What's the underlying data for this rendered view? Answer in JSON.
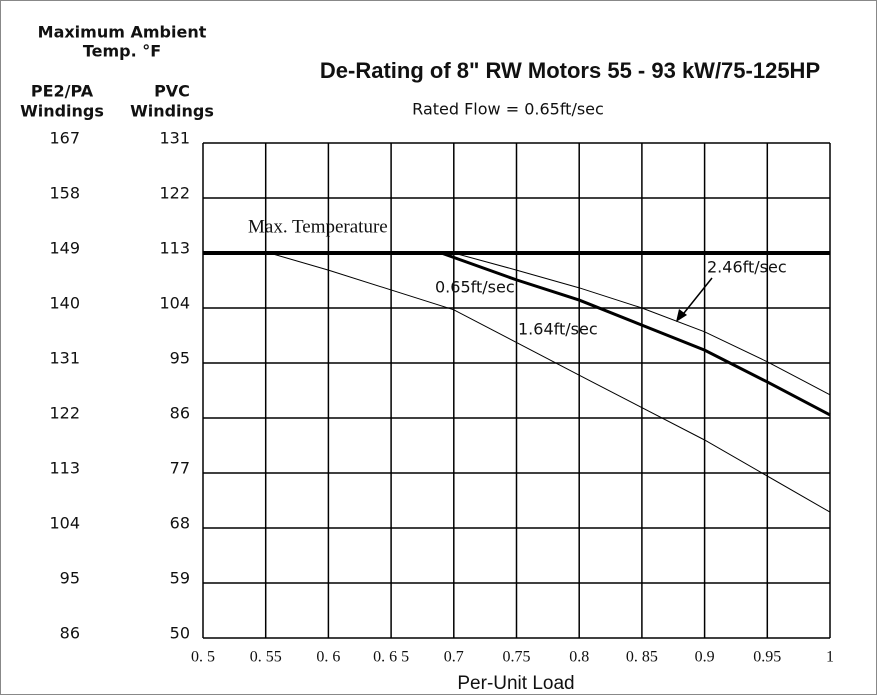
{
  "chart_data": {
    "type": "line",
    "title": "De-Rating of 8\" RW Motors 55 - 93 kW/75-125HP",
    "subtitle": "Rated Flow = 0.65ft/sec",
    "y_header": [
      "Maximum Ambient",
      "Temp. °F"
    ],
    "y2_axis_label": [
      "PE2/PA",
      "Windings"
    ],
    "y_axis_label": [
      "PVC",
      "Windings"
    ],
    "x_axis_label": "Per-Unit Load",
    "xlim": [
      0.5,
      1
    ],
    "xticks": [
      {
        "value": 0.5,
        "label": "0. 5"
      },
      {
        "value": 0.55,
        "label": "0. 55"
      },
      {
        "value": 0.6,
        "label": "0. 6"
      },
      {
        "value": 0.65,
        "label": "0. 6 5"
      },
      0.7,
      0.75,
      0.8,
      {
        "value": 0.85,
        "label": "0. 85"
      },
      0.9,
      0.95,
      1
    ],
    "ylim": [
      50,
      131
    ],
    "yticks": [
      50,
      59,
      68,
      77,
      86,
      95,
      104,
      113,
      122,
      131
    ],
    "y2lim": [
      86,
      167
    ],
    "y2ticks": [
      86,
      95,
      104,
      113,
      122,
      131,
      140,
      149,
      158,
      167
    ],
    "grid": true,
    "series": [
      {
        "name": "Max. Temperature",
        "color": "#000000",
        "width": 4,
        "x": [
          0.5,
          1
        ],
        "values": [
          113,
          113
        ]
      },
      {
        "name": "0.65ft/sec",
        "color": "#000000",
        "width": 1,
        "x": [
          0.553,
          0.6,
          0.7,
          0.8,
          0.9,
          1
        ],
        "values": [
          113,
          110.2,
          103.7,
          93,
          82.4,
          70.6
        ]
      },
      {
        "name": "1.64ft/sec",
        "color": "#000000",
        "width": 3,
        "x": [
          0.69,
          0.75,
          0.8,
          0.85,
          0.9,
          0.95,
          1
        ],
        "values": [
          113,
          108.6,
          105.3,
          101.2,
          97.1,
          91.9,
          86.5
        ]
      },
      {
        "name": "2.46ft/sec",
        "color": "#000000",
        "width": 1,
        "x": [
          0.7,
          0.75,
          0.8,
          0.85,
          0.9,
          0.95,
          1
        ],
        "values": [
          113,
          110.2,
          107.3,
          104,
          100.1,
          95.2,
          89.8
        ]
      }
    ]
  }
}
